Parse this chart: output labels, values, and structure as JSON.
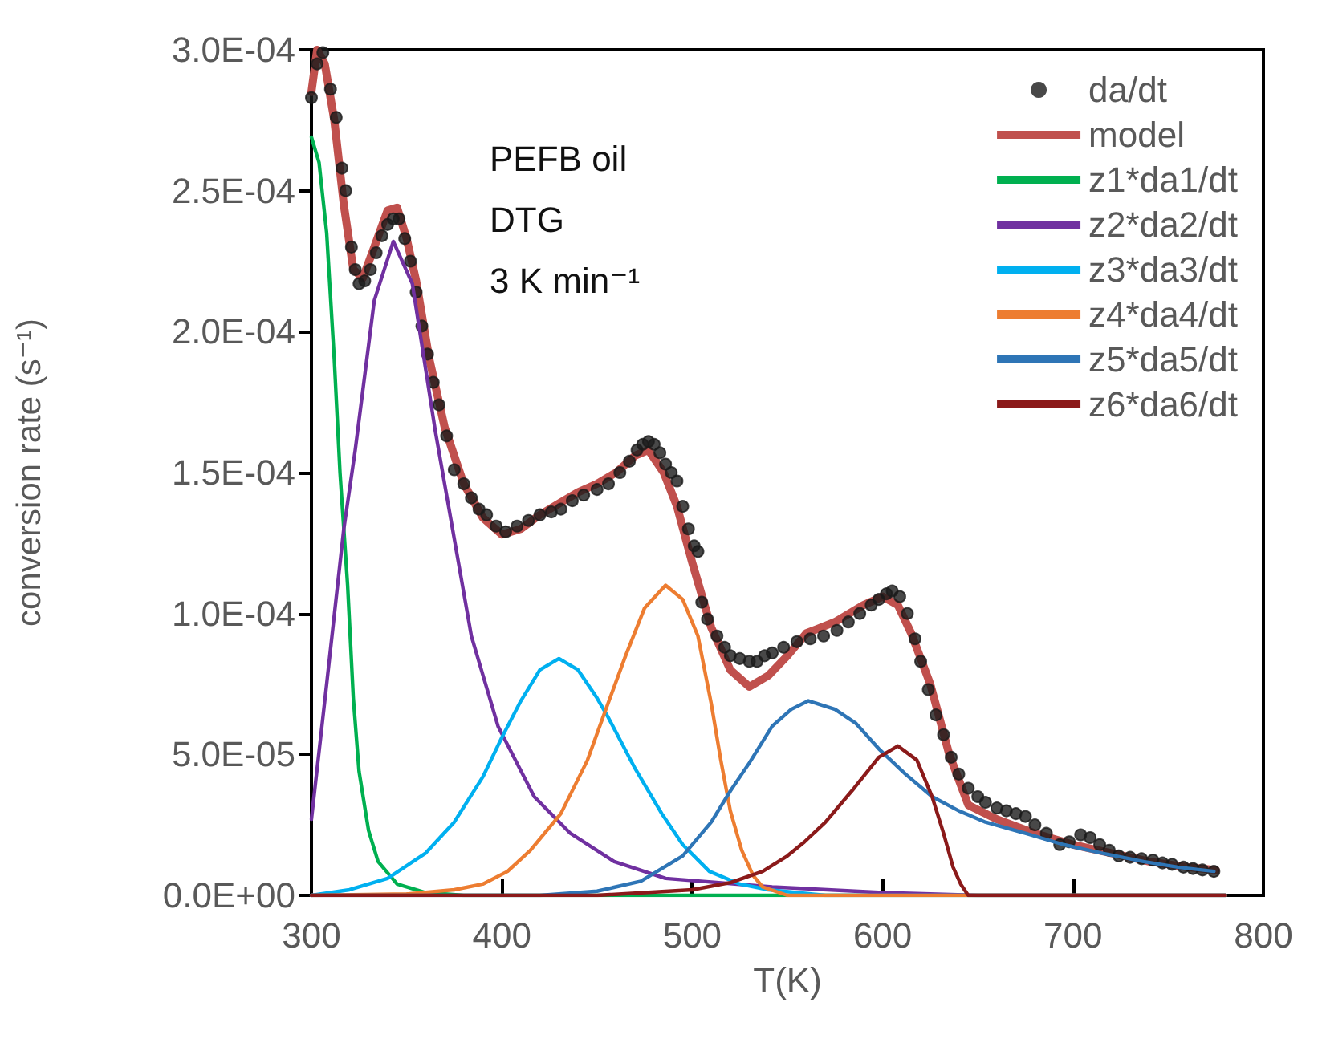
{
  "chart_data": {
    "type": "line",
    "xlabel": "T(K)",
    "ylabel": "conversion rate (s⁻¹)",
    "annotations": [
      "PEFB oil",
      "DTG",
      "3 K min⁻¹"
    ],
    "xlim": [
      300,
      800
    ],
    "xticks": [
      300,
      400,
      500,
      600,
      700,
      800
    ],
    "ylim": [
      0,
      0.0003
    ],
    "yticks": [
      {
        "value": 0,
        "label": "0.0E+00"
      },
      {
        "value": 5e-05,
        "label": "5.0E-05"
      },
      {
        "value": 0.0001,
        "label": "1.0E-04"
      },
      {
        "value": 0.00015,
        "label": "1.5E-04"
      },
      {
        "value": 0.0002,
        "label": "2.0E-04"
      },
      {
        "value": 0.00025,
        "label": "2.5E-04"
      },
      {
        "value": 0.0003,
        "label": "3.0E-04"
      }
    ],
    "grid": false,
    "legend": "top right",
    "line_style": "solid",
    "series": [
      {
        "name": "da/dt",
        "type": "scatter",
        "marker": "circle",
        "color": "#1a1a1a",
        "x": [
          300,
          303,
          306,
          310,
          313,
          316,
          318,
          321,
          323,
          325,
          328,
          331,
          334,
          337,
          340,
          343,
          346,
          349,
          352,
          355,
          358,
          361,
          364,
          367,
          371,
          375,
          380,
          384,
          388,
          392,
          397,
          402,
          408,
          414,
          420,
          426,
          431,
          437,
          443,
          450,
          456,
          462,
          467,
          471,
          474,
          477,
          480,
          483,
          486,
          489,
          492,
          495,
          498,
          501,
          503,
          505,
          508,
          513,
          517,
          520,
          525,
          530,
          534,
          538,
          542,
          548,
          555,
          562,
          569,
          576,
          582,
          588,
          594,
          598,
          602,
          605,
          609,
          613,
          617,
          620,
          624,
          628,
          632,
          636,
          640,
          645,
          650,
          654,
          660,
          665,
          670,
          675,
          680,
          686,
          693,
          698,
          704,
          709,
          714,
          719,
          724,
          730,
          736,
          742,
          747,
          752,
          758,
          763,
          768,
          774
        ],
        "values": [
          0.000283,
          0.000295,
          0.000299,
          0.000286,
          0.000276,
          0.000258,
          0.00025,
          0.00023,
          0.000222,
          0.000217,
          0.000218,
          0.000222,
          0.000228,
          0.000234,
          0.000238,
          0.00024,
          0.00024,
          0.000233,
          0.000225,
          0.000214,
          0.000202,
          0.000192,
          0.000182,
          0.000174,
          0.000163,
          0.000151,
          0.000146,
          0.000141,
          0.000137,
          0.000135,
          0.000131,
          0.000129,
          0.000131,
          0.000133,
          0.000135,
          0.000136,
          0.000137,
          0.00014,
          0.000142,
          0.000144,
          0.000146,
          0.00015,
          0.000154,
          0.000158,
          0.00016,
          0.000161,
          0.00016,
          0.000157,
          0.000153,
          0.00015,
          0.000147,
          0.000138,
          0.00013,
          0.000124,
          0.000122,
          0.000104,
          9.8e-05,
          9.2e-05,
          8.8e-05,
          8.5e-05,
          8.4e-05,
          8.3e-05,
          8.3e-05,
          8.5e-05,
          8.6e-05,
          8.8e-05,
          9e-05,
          9.1e-05,
          9.2e-05,
          9.4e-05,
          9.7e-05,
          0.0001,
          0.000103,
          0.000105,
          0.000107,
          0.000108,
          0.000106,
          0.0001,
          9.1e-05,
          8.3e-05,
          7.3e-05,
          6.4e-05,
          5.7e-05,
          4.9e-05,
          4.3e-05,
          3.8e-05,
          3.5e-05,
          3.3e-05,
          3.1e-05,
          3e-05,
          2.9e-05,
          2.8e-05,
          2.5e-05,
          2.2e-05,
          1.8e-05,
          1.9e-05,
          2.15e-05,
          2.05e-05,
          1.8e-05,
          1.6e-05,
          1.4e-05,
          1.35e-05,
          1.3e-05,
          1.25e-05,
          1.15e-05,
          1.1e-05,
          1e-05,
          9.5e-06,
          9e-06,
          8.5e-06
        ]
      },
      {
        "name": "model",
        "color": "#c0504d",
        "marker": "none",
        "x": [
          300,
          303,
          307,
          312,
          317,
          322,
          327,
          333,
          340,
          345,
          350,
          355,
          362,
          370,
          380,
          390,
          400,
          410,
          420,
          430,
          440,
          450,
          460,
          470,
          477,
          485,
          492,
          500,
          510,
          520,
          530,
          540,
          550,
          560,
          575,
          590,
          600,
          608,
          615,
          625,
          635,
          645,
          660,
          680,
          700,
          720,
          740,
          760,
          775
        ],
        "values": [
          0.000285,
          0.0003,
          0.000295,
          0.000275,
          0.000245,
          0.000222,
          0.000219,
          0.00023,
          0.000243,
          0.000244,
          0.000233,
          0.000218,
          0.00019,
          0.000166,
          0.000146,
          0.000134,
          0.000128,
          0.00013,
          0.000135,
          0.000139,
          0.000143,
          0.000146,
          0.00015,
          0.000156,
          0.000158,
          0.00015,
          0.000138,
          0.000118,
          9.5e-05,
          8e-05,
          7.4e-05,
          7.8e-05,
          8.5e-05,
          9.3e-05,
          9.7e-05,
          0.000103,
          0.000106,
          0.000103,
          9.3e-05,
          7.5e-05,
          5e-05,
          3.2e-05,
          2.7e-05,
          2.2e-05,
          1.8e-05,
          1.5e-05,
          1.2e-05,
          1e-05,
          9e-06
        ]
      },
      {
        "name": "z1*da1/dt",
        "color": "#00b050",
        "marker": "none",
        "x": [
          300,
          304,
          308,
          312,
          315,
          319,
          322,
          325,
          330,
          335,
          345,
          360,
          380,
          780
        ],
        "values": [
          0.000269,
          0.00026,
          0.000235,
          0.00019,
          0.00015,
          0.00011,
          7e-05,
          4.4e-05,
          2.3e-05,
          1.2e-05,
          4e-06,
          1e-06,
          0,
          0
        ]
      },
      {
        "name": "z2*da2/dt",
        "color": "#7030a0",
        "marker": "none",
        "x": [
          300,
          308,
          317,
          323,
          333,
          343,
          353,
          365,
          384,
          398,
          417,
          436,
          459,
          486,
          542,
          600,
          650,
          780
        ],
        "values": [
          2.7e-05,
          7.5e-05,
          0.00013,
          0.000158,
          0.000211,
          0.000232,
          0.000217,
          0.000165,
          9.2e-05,
          6e-05,
          3.5e-05,
          2.2e-05,
          1.2e-05,
          6e-06,
          3e-06,
          1e-06,
          0,
          0
        ]
      },
      {
        "name": "z3*da3/dt",
        "color": "#00b0f0",
        "marker": "none",
        "x": [
          300,
          320,
          340,
          360,
          375,
          390,
          400,
          410,
          420,
          430,
          440,
          450,
          456,
          470,
          484,
          495,
          509,
          525,
          540,
          570,
          780
        ],
        "values": [
          0,
          2e-06,
          6e-06,
          1.5e-05,
          2.6e-05,
          4.2e-05,
          5.6e-05,
          6.9e-05,
          8e-05,
          8.4e-05,
          8e-05,
          7e-05,
          6.3e-05,
          4.5e-05,
          2.9e-05,
          1.8e-05,
          8.5e-06,
          4e-06,
          2e-06,
          0,
          0
        ]
      },
      {
        "name": "z4*da4/dt",
        "color": "#ed7d31",
        "marker": "none",
        "x": [
          300,
          350,
          375,
          390,
          403,
          415,
          431,
          445,
          453,
          465,
          475,
          486,
          495,
          503,
          510,
          515,
          520,
          526,
          532,
          537,
          550,
          780
        ],
        "values": [
          0,
          5e-07,
          2e-06,
          4e-06,
          8.5e-06,
          1.6e-05,
          2.9e-05,
          4.8e-05,
          6.3e-05,
          8.5e-05,
          0.000102,
          0.00011,
          0.000105,
          9.2e-05,
          6.8e-05,
          4.8e-05,
          3e-05,
          1.6e-05,
          7e-06,
          3e-06,
          0,
          0
        ]
      },
      {
        "name": "z5*da5/dt",
        "color": "#2e75b6",
        "marker": "none",
        "x": [
          300,
          420,
          450,
          473,
          495,
          510,
          520,
          530,
          542,
          552,
          561,
          575,
          586,
          598,
          612,
          626,
          640,
          654,
          675,
          695,
          715,
          737,
          755,
          774
        ],
        "values": [
          0,
          0,
          1.5e-06,
          5e-06,
          1.4e-05,
          2.6e-05,
          3.7e-05,
          4.7e-05,
          6e-05,
          6.6e-05,
          6.9e-05,
          6.6e-05,
          6.1e-05,
          5.2e-05,
          4.3e-05,
          3.5e-05,
          3e-05,
          2.6e-05,
          2.2e-05,
          1.8e-05,
          1.5e-05,
          1.2e-05,
          1e-05,
          8.5e-06
        ]
      },
      {
        "name": "z6*da6/dt",
        "color": "#8b1a1a",
        "marker": "none",
        "x": [
          300,
          450,
          500,
          520,
          537,
          550,
          559,
          570,
          585,
          598,
          608,
          618,
          626,
          632,
          637,
          641,
          645,
          780
        ],
        "values": [
          0,
          0,
          2e-06,
          4.5e-06,
          8.5e-06,
          1.4e-05,
          1.9e-05,
          2.6e-05,
          3.8e-05,
          4.9e-05,
          5.3e-05,
          4.8e-05,
          3.5e-05,
          2.2e-05,
          1e-05,
          4e-06,
          0,
          0
        ]
      }
    ]
  }
}
